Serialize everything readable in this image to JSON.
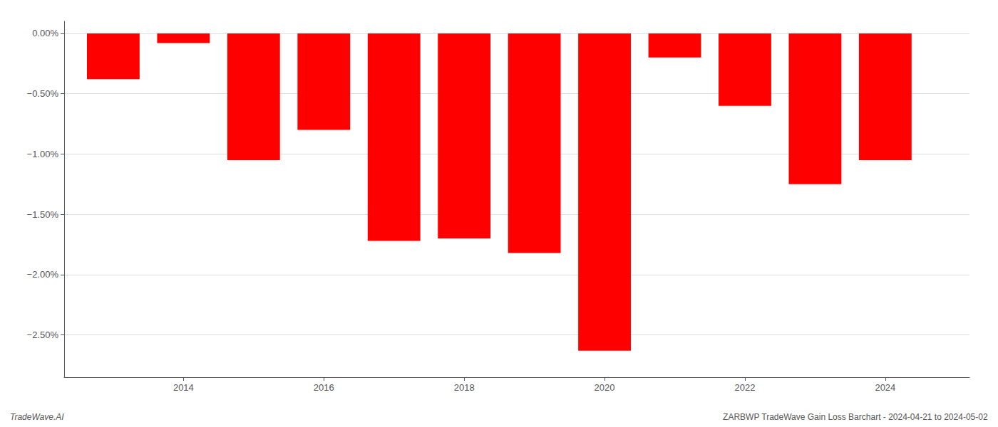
{
  "chart_data": {
    "type": "bar",
    "x": [
      2013,
      2014,
      2015,
      2016,
      2017,
      2018,
      2019,
      2020,
      2021,
      2022,
      2023,
      2024
    ],
    "values": [
      -0.38,
      -0.08,
      -1.05,
      -0.8,
      -1.72,
      -1.7,
      -1.82,
      -2.63,
      -0.2,
      -0.6,
      -1.25,
      -1.05
    ],
    "color": "#ff0000",
    "xlim": [
      2012.3,
      2025.2
    ],
    "xticks": [
      2014,
      2016,
      2018,
      2020,
      2022,
      2024
    ],
    "ylim": [
      -2.85,
      0.1
    ],
    "yticks": [
      {
        "value": 0.0,
        "label": "0.00%"
      },
      {
        "value": -0.5,
        "label": "−0.50%"
      },
      {
        "value": -1.0,
        "label": "−1.00%"
      },
      {
        "value": -1.5,
        "label": "−1.50%"
      },
      {
        "value": -2.0,
        "label": "−2.00%"
      },
      {
        "value": -2.5,
        "label": "−2.50%"
      }
    ],
    "grid": true,
    "annotations": [
      "TradeWave.AI",
      "ZARBWP TradeWave Gain Loss Barchart - 2024-04-21 to 2024-05-02"
    ]
  }
}
